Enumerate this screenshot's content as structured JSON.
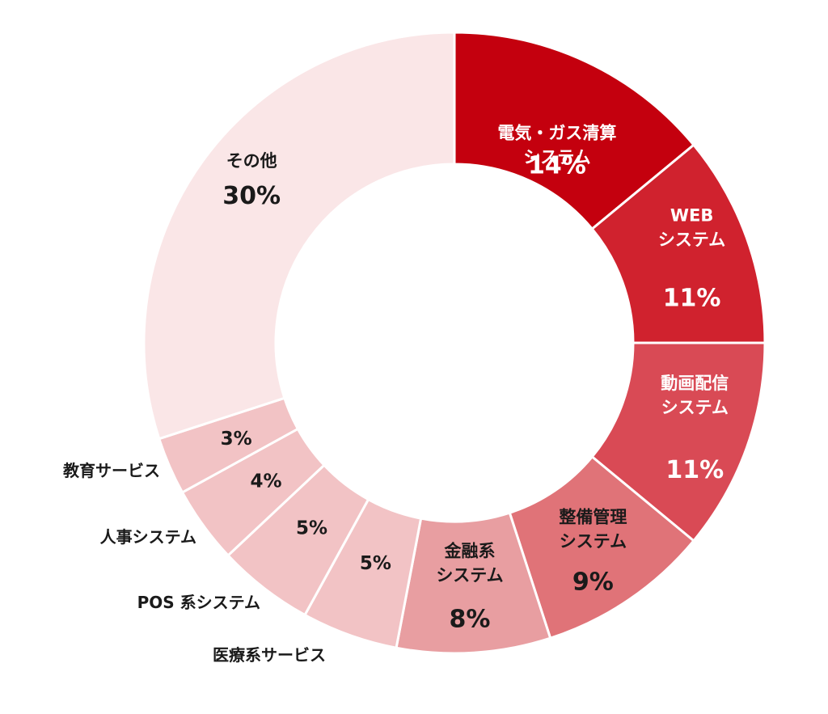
{
  "chart_data": {
    "type": "pie",
    "donut": true,
    "title": "",
    "start_angle_deg": 0,
    "direction": "clockwise",
    "slices": [
      {
        "id": "gas",
        "label_lines": [
          "電気・ガス清算",
          "システム"
        ],
        "pct_label": "14%",
        "value": 14,
        "color": "#c4000e",
        "text_color": "#ffffff",
        "label_position": "inside"
      },
      {
        "id": "web",
        "label_lines": [
          "WEB",
          "システム"
        ],
        "pct_label": "11%",
        "value": 11,
        "color": "#d0222e",
        "text_color": "#ffffff",
        "label_position": "inside"
      },
      {
        "id": "video",
        "label_lines": [
          "動画配信",
          "システム"
        ],
        "pct_label": "11%",
        "value": 11,
        "color": "#d94a55",
        "text_color": "#ffffff",
        "label_position": "inside"
      },
      {
        "id": "maint",
        "label_lines": [
          "整備管理",
          "システム"
        ],
        "pct_label": "9%",
        "value": 9,
        "color": "#e07378",
        "text_color": "#1a1a1a",
        "label_position": "inside"
      },
      {
        "id": "fin",
        "label_lines": [
          "金融系",
          "システム"
        ],
        "pct_label": "8%",
        "value": 8,
        "color": "#e89ea1",
        "text_color": "#1a1a1a",
        "label_position": "inside"
      },
      {
        "id": "med",
        "label_lines": [
          "医療系サービス"
        ],
        "pct_label": "5%",
        "value": 5,
        "color": "#f2c3c5",
        "text_color": "#1a1a1a",
        "label_position": "outside"
      },
      {
        "id": "pos",
        "label_lines": [
          "POS 系システム"
        ],
        "pct_label": "5%",
        "value": 5,
        "color": "#f2c3c5",
        "text_color": "#1a1a1a",
        "label_position": "outside"
      },
      {
        "id": "hr",
        "label_lines": [
          "人事システム"
        ],
        "pct_label": "4%",
        "value": 4,
        "color": "#f2c3c5",
        "text_color": "#1a1a1a",
        "label_position": "outside"
      },
      {
        "id": "edu",
        "label_lines": [
          "教育サービス"
        ],
        "pct_label": "3%",
        "value": 3,
        "color": "#f2c3c5",
        "text_color": "#1a1a1a",
        "label_position": "outside"
      },
      {
        "id": "other",
        "label_lines": [
          "その他"
        ],
        "pct_label": "30%",
        "value": 30,
        "color": "#fae6e7",
        "text_color": "#1a1a1a",
        "label_position": "inside"
      }
    ]
  }
}
